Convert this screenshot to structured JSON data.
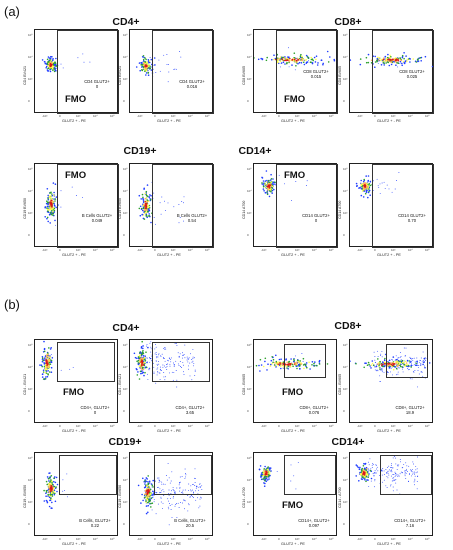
{
  "panels": [
    {
      "label": "(a)",
      "groups": [
        {
          "title": "CD4+",
          "plots": [
            {
              "fmo": "FMO",
              "y_axis": "CD4 BV421",
              "x_axis": "GLUT2 + - PE",
              "gate_name": "CD4 GLUT2+",
              "gate_value": "0"
            },
            {
              "fmo": "",
              "y_axis": "CD4 BV421",
              "x_axis": "GLUT2 + - PE",
              "gate_name": "CD4 GLUT2+",
              "gate_value": "0.016"
            }
          ]
        },
        {
          "title": "CD8+",
          "plots": [
            {
              "fmo": "FMO",
              "y_axis": "CD8 BV605",
              "x_axis": "GLUT2 + - PE",
              "gate_name": "CD8 GLUT2+",
              "gate_value": "0.015"
            },
            {
              "fmo": "",
              "y_axis": "CD8 BV605",
              "x_axis": "GLUT2 + - PE",
              "gate_name": "CD8 GLUT2+",
              "gate_value": "0.025"
            }
          ]
        },
        {
          "title": "CD19+",
          "plots": [
            {
              "fmo": "FMO",
              "y_axis": "CD19 BV650",
              "x_axis": "GLUT2 + - PE",
              "gate_name": "B Cells GLUT2+",
              "gate_value": "0.049"
            },
            {
              "fmo": "",
              "y_axis": "CD19 BV650",
              "x_axis": "GLUT2 + - PE",
              "gate_name": "B Cells GLUT2+",
              "gate_value": "0.54"
            }
          ]
        },
        {
          "title": "CD14+",
          "plots": [
            {
              "fmo": "FMO",
              "y_axis": "CD14 A700",
              "x_axis": "GLUT2 + - PE",
              "gate_name": "CD14 GLUT2+",
              "gate_value": "0"
            },
            {
              "fmo": "",
              "y_axis": "CD14 A700",
              "x_axis": "GLUT2 + - PE",
              "gate_name": "CD14 GLUT2+",
              "gate_value": "0.70"
            }
          ]
        }
      ]
    },
    {
      "label": "(b)",
      "groups": [
        {
          "title": "CD4+",
          "plots": [
            {
              "fmo": "FMO",
              "y_axis": "CD4 - BV421",
              "x_axis": "GLUT2 + - PE",
              "gate_name": "CD4+, GLUT2+",
              "gate_value": "0"
            },
            {
              "fmo": "",
              "y_axis": "CD4 - BV421",
              "x_axis": "GLUT2 + - PE",
              "gate_name": "CD4+, GLUT2+",
              "gate_value": "3.65"
            }
          ]
        },
        {
          "title": "CD8+",
          "plots": [
            {
              "fmo": "FMO",
              "y_axis": "CD8 - BV605",
              "x_axis": "GLUT2 + - PE",
              "gate_name": "CD8+, GLUT2+",
              "gate_value": "0.076"
            },
            {
              "fmo": "",
              "y_axis": "CD8 - BV605",
              "x_axis": "GLUT2 + - PE",
              "gate_name": "CD8+, GLUT2+",
              "gate_value": "18.9"
            }
          ]
        },
        {
          "title": "CD19+",
          "plots": [
            {
              "fmo": "",
              "y_axis": "CD19 - BV650",
              "x_axis": "GLUT2 + - PE",
              "gate_name": "B Cells, GLUT2+",
              "gate_value": "0.22"
            },
            {
              "fmo": "",
              "y_axis": "CD19 - BV650",
              "x_axis": "GLUT2 + - PE",
              "gate_name": "B Cells, GLUT2+",
              "gate_value": "20.5"
            }
          ]
        },
        {
          "title": "CD14+",
          "plots": [
            {
              "fmo": "FMO",
              "y_axis": "CD14 - A700",
              "x_axis": "GLUT2 + - PE",
              "gate_name": "CD14+, GLUT2+",
              "gate_value": "0.097"
            },
            {
              "fmo": "",
              "y_axis": "CD14 - A700",
              "x_axis": "GLUT2 + - PE",
              "gate_name": "CD14+, GLUT2+",
              "gate_value": "7.16"
            }
          ]
        }
      ]
    }
  ],
  "axis_ticks": {
    "x": [
      "-10³",
      "0",
      "10³",
      "10⁴",
      "10⁵"
    ],
    "y": [
      "10⁵",
      "10⁴",
      "10³",
      "0"
    ]
  },
  "colors": {
    "density_high": "#d7191c",
    "density_mid_high": "#fdae61",
    "density_mid": "#ffff4d",
    "density_low_mid": "#2ca02c",
    "density_low": "#1f3cff",
    "gate_line": "#333333"
  }
}
